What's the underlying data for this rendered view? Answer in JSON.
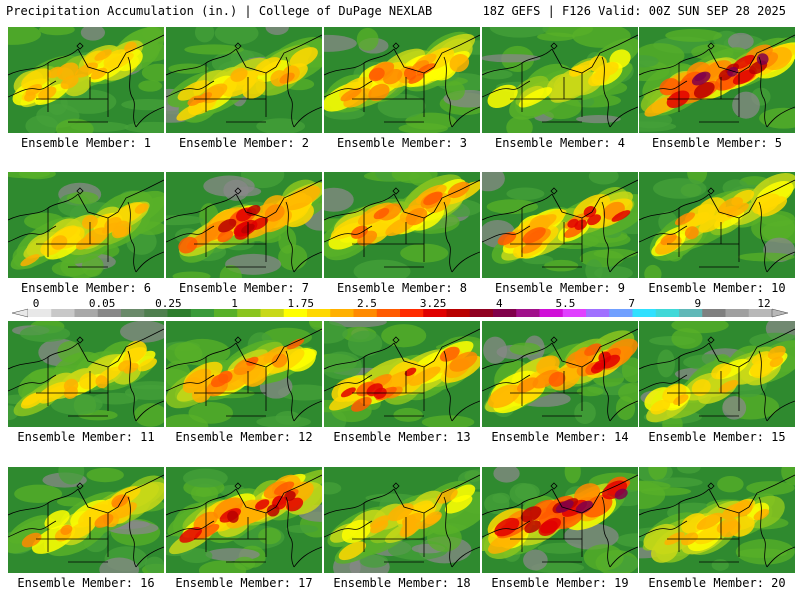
{
  "header": {
    "left_title": "Precipitation Accumulation (in.) | College of DuPage NEXLAB",
    "right_title": "18Z GEFS | F126 Valid: 00Z SUN SEP 28 2025"
  },
  "legend": {
    "tick_labels": [
      "0",
      "0.05",
      "0.25",
      "1",
      "1.75",
      "2.5",
      "3.25",
      "4",
      "5.5",
      "7",
      "9",
      "12"
    ],
    "colors": [
      "#e8e8e8",
      "#c8c8c8",
      "#a8a8a8",
      "#888888",
      "#6a8a6a",
      "#4f7f4f",
      "#2e7d2e",
      "#3a9a3a",
      "#58b028",
      "#8ac41e",
      "#c8d818",
      "#ffff00",
      "#ffd800",
      "#ffb000",
      "#ff8a00",
      "#ff5a00",
      "#ff2a00",
      "#e00000",
      "#b80000",
      "#900020",
      "#80004a",
      "#a0108a",
      "#d010d8",
      "#e040ff",
      "#a070ff",
      "#70a0ff",
      "#30e0ff",
      "#40d8d8",
      "#60b8b8",
      "#808080",
      "#a0a0a0",
      "#b8b8b8"
    ]
  },
  "panels": [
    {
      "label": "Ensemble Member: 1",
      "intensity": 0.55
    },
    {
      "label": "Ensemble Member: 2",
      "intensity": 0.6
    },
    {
      "label": "Ensemble Member: 3",
      "intensity": 0.65
    },
    {
      "label": "Ensemble Member: 4",
      "intensity": 0.45
    },
    {
      "label": "Ensemble Member: 5",
      "intensity": 0.95
    },
    {
      "label": "Ensemble Member: 6",
      "intensity": 0.55
    },
    {
      "label": "Ensemble Member: 7",
      "intensity": 0.85
    },
    {
      "label": "Ensemble Member: 8",
      "intensity": 0.7
    },
    {
      "label": "Ensemble Member: 9",
      "intensity": 0.75
    },
    {
      "label": "Ensemble Member: 10",
      "intensity": 0.6
    },
    {
      "label": "Ensemble Member: 11",
      "intensity": 0.5
    },
    {
      "label": "Ensemble Member: 12",
      "intensity": 0.7
    },
    {
      "label": "Ensemble Member: 13",
      "intensity": 0.75
    },
    {
      "label": "Ensemble Member: 14",
      "intensity": 0.8
    },
    {
      "label": "Ensemble Member: 15",
      "intensity": 0.5
    },
    {
      "label": "Ensemble Member: 16",
      "intensity": 0.6
    },
    {
      "label": "Ensemble Member: 17",
      "intensity": 0.85
    },
    {
      "label": "Ensemble Member: 18",
      "intensity": 0.55
    },
    {
      "label": "Ensemble Member: 19",
      "intensity": 0.95
    },
    {
      "label": "Ensemble Member: 20",
      "intensity": 0.55
    }
  ]
}
